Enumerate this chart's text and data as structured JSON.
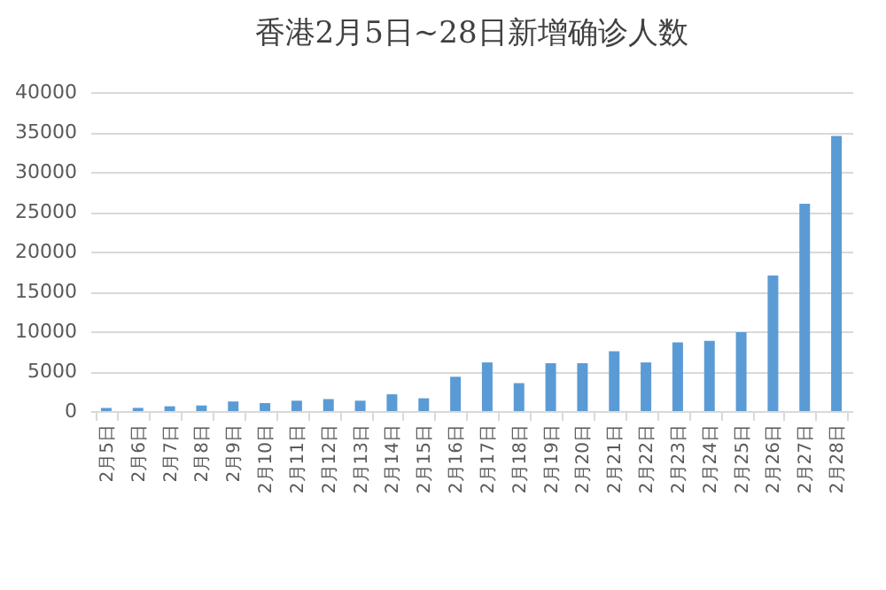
{
  "chart_data": {
    "type": "bar",
    "title": "香港2月5日~28日新增确诊人数",
    "categories": [
      "2月5日",
      "2月6日",
      "2月7日",
      "2月8日",
      "2月9日",
      "2月10日",
      "2月11日",
      "2月12日",
      "2月13日",
      "2月14日",
      "2月15日",
      "2月16日",
      "2月17日",
      "2月18日",
      "2月19日",
      "2月20日",
      "2月21日",
      "2月22日",
      "2月23日",
      "2月24日",
      "2月25日",
      "2月26日",
      "2月27日",
      "2月28日"
    ],
    "values": [
      400,
      400,
      600,
      700,
      1200,
      1000,
      1300,
      1500,
      1300,
      2100,
      1600,
      4300,
      6100,
      3500,
      6000,
      6000,
      7500,
      6100,
      8600,
      8800,
      9900,
      17000,
      26000,
      34500
    ],
    "color": "#5b9bd5",
    "ylim": [
      0,
      40000
    ],
    "yticks": [
      0,
      5000,
      10000,
      15000,
      20000,
      25000,
      30000,
      35000,
      40000
    ],
    "grid": "y"
  }
}
